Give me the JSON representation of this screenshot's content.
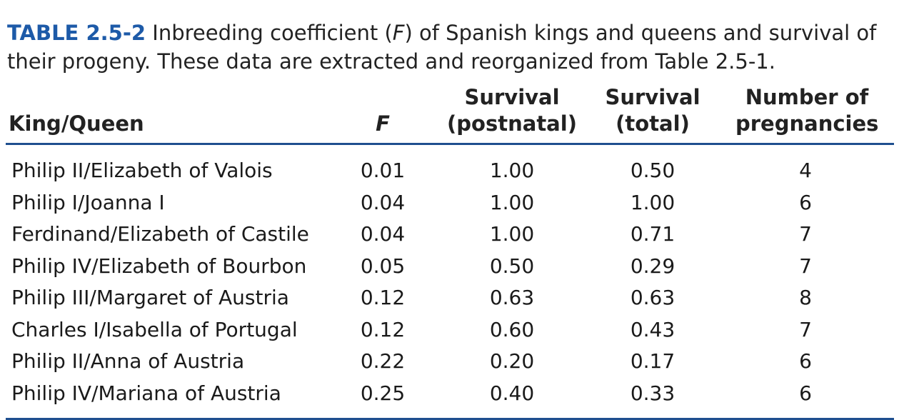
{
  "caption": {
    "label": "TABLE 2.5-2",
    "text_before": " Inbreeding coefficient (",
    "symbol": "F",
    "text_after": ") of Spanish kings and queens and survival of their progeny. These data are extracted and reorganized from Table 2.5-1."
  },
  "table": {
    "headers": {
      "name": "King/Queen",
      "f": "F",
      "postnatal_line1": "Survival",
      "postnatal_line2": "(postnatal)",
      "total_line1": "Survival",
      "total_line2": "(total)",
      "pregnancies_line1": "Number of",
      "pregnancies_line2": "pregnancies"
    },
    "rows": [
      {
        "name": "Philip II/Elizabeth of Valois",
        "f": "0.01",
        "postnatal": "1.00",
        "total": "0.50",
        "pregnancies": "4"
      },
      {
        "name": "Philip I/Joanna I",
        "f": "0.04",
        "postnatal": "1.00",
        "total": "1.00",
        "pregnancies": "6"
      },
      {
        "name": "Ferdinand/Elizabeth of Castile",
        "f": "0.04",
        "postnatal": "1.00",
        "total": "0.71",
        "pregnancies": "7"
      },
      {
        "name": "Philip IV/Elizabeth of Bourbon",
        "f": "0.05",
        "postnatal": "0.50",
        "total": "0.29",
        "pregnancies": "7"
      },
      {
        "name": "Philip III/Margaret of Austria",
        "f": "0.12",
        "postnatal": "0.63",
        "total": "0.63",
        "pregnancies": "8"
      },
      {
        "name": "Charles I/Isabella of Portugal",
        "f": "0.12",
        "postnatal": "0.60",
        "total": "0.43",
        "pregnancies": "7"
      },
      {
        "name": "Philip II/Anna of Austria",
        "f": "0.22",
        "postnatal": "0.20",
        "total": "0.17",
        "pregnancies": "6"
      },
      {
        "name": "Philip IV/Mariana of Austria",
        "f": "0.25",
        "postnatal": "0.40",
        "total": "0.33",
        "pregnancies": "6"
      }
    ]
  },
  "colors": {
    "label": "#1d5aa8",
    "rule": "#1f4f8f",
    "text": "#1a1a1a"
  }
}
